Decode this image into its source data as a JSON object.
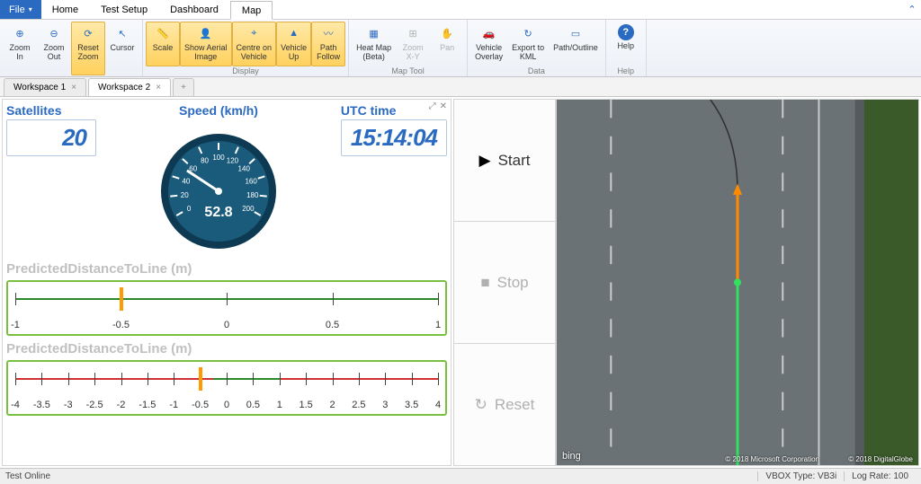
{
  "menubar": {
    "file": "File",
    "tabs": [
      "Home",
      "Test Setup",
      "Dashboard",
      "Map"
    ],
    "active_tab": 3
  },
  "ribbon": {
    "groups": [
      {
        "label": "",
        "items": [
          {
            "name": "zoom-in",
            "icon": "⊕",
            "label": "Zoom\nIn"
          },
          {
            "name": "zoom-out",
            "icon": "⊖",
            "label": "Zoom\nOut"
          },
          {
            "name": "reset-zoom",
            "icon": "⟳",
            "label": "Reset\nZoom",
            "highlight": true
          },
          {
            "name": "cursor",
            "icon": "↖",
            "label": "Cursor"
          }
        ]
      },
      {
        "label": "Display",
        "items": [
          {
            "name": "scale",
            "icon": "📏",
            "label": "Scale",
            "highlight": true
          },
          {
            "name": "aerial",
            "icon": "👤",
            "label": "Show Aerial\nImage",
            "highlight": true
          },
          {
            "name": "centre",
            "icon": "⌖",
            "label": "Centre on\nVehicle",
            "highlight": true
          },
          {
            "name": "vehicle-up",
            "icon": "▲",
            "label": "Vehicle\nUp",
            "highlight": true
          },
          {
            "name": "path-follow",
            "icon": "〰",
            "label": "Path\nFollow",
            "highlight": true
          }
        ]
      },
      {
        "label": "Map Tool",
        "items": [
          {
            "name": "heat-map",
            "icon": "▦",
            "label": "Heat Map\n(Beta)"
          },
          {
            "name": "zoom-xy",
            "icon": "⊞",
            "label": "Zoom\nX-Y",
            "disabled": true
          },
          {
            "name": "pan",
            "icon": "✋",
            "label": "Pan",
            "disabled": true
          }
        ]
      },
      {
        "label": "Data",
        "items": [
          {
            "name": "overlay",
            "icon": "🚗",
            "label": "Vehicle\nOverlay"
          },
          {
            "name": "export-kml",
            "icon": "↻",
            "label": "Export to\nKML"
          },
          {
            "name": "path-outline",
            "icon": "▭",
            "label": "Path/Outline"
          }
        ]
      },
      {
        "label": "Help",
        "items": [
          {
            "name": "help",
            "icon": "?",
            "label": "Help"
          }
        ]
      }
    ]
  },
  "workspace_tabs": {
    "tabs": [
      "Workspace 1",
      "Workspace 2"
    ],
    "active": 1
  },
  "dashboard": {
    "satellites": {
      "label": "Satellites",
      "value": "20"
    },
    "speed": {
      "label": "Speed (km/h)",
      "value": 52.8,
      "value_text": "52.8",
      "max": 200,
      "ticks": [
        0,
        20,
        40,
        60,
        80,
        100,
        120,
        140,
        160,
        180,
        200
      ],
      "face_color": "#1a5a7a",
      "needle_color": "#ffffff",
      "rim_color": "#0d3a52"
    },
    "utc": {
      "label": "UTC time",
      "value": "15:14:04"
    },
    "predict1": {
      "label": "PredictedDistanceToLine (m)",
      "min": -1,
      "max": 1,
      "step": 0.5,
      "ticks": [
        -1,
        -0.5,
        0,
        0.5,
        1
      ],
      "cursor": -0.5,
      "segments": [
        {
          "from": -1,
          "to": 1,
          "color": "#2a8a2a"
        }
      ],
      "border_color": "#7ac040"
    },
    "predict2": {
      "label": "PredictedDistanceToLine (m)",
      "min": -4,
      "max": 4,
      "step": 0.5,
      "ticks": [
        -4,
        -3.5,
        -3,
        -2.5,
        -2,
        -1.5,
        -1,
        -0.5,
        0,
        0.5,
        1,
        1.5,
        2,
        2.5,
        3,
        3.5,
        4
      ],
      "cursor": -0.5,
      "segments": [
        {
          "from": -4,
          "to": -0.25,
          "color": "#d03030"
        },
        {
          "from": -0.25,
          "to": 1.0,
          "color": "#2a8a2a"
        },
        {
          "from": 1.0,
          "to": 4,
          "color": "#d03030"
        }
      ],
      "border_color": "#7ac040"
    }
  },
  "controls": {
    "start": "Start",
    "stop": "Stop",
    "reset": "Reset"
  },
  "map": {
    "road_color": "#6a7275",
    "lane_line_color": "#c8cbcd",
    "grass_color": "#3a5a2a",
    "vehicle_path_color": "#33e060",
    "vehicle_heading_color": "#ff8a00",
    "trail_color": "#303030",
    "bing_label": "bing",
    "attrib_left": "© 2018 Microsoft Corporation",
    "attrib_right": "© 2018 DigitalGlobe"
  },
  "status": {
    "left": "Test Online",
    "vbox_type": "VBOX Type: VB3i",
    "log_rate": "Log Rate: 100"
  },
  "colors": {
    "accent": "#2a6ac0",
    "ribbon_highlight": "#ffd15e"
  }
}
